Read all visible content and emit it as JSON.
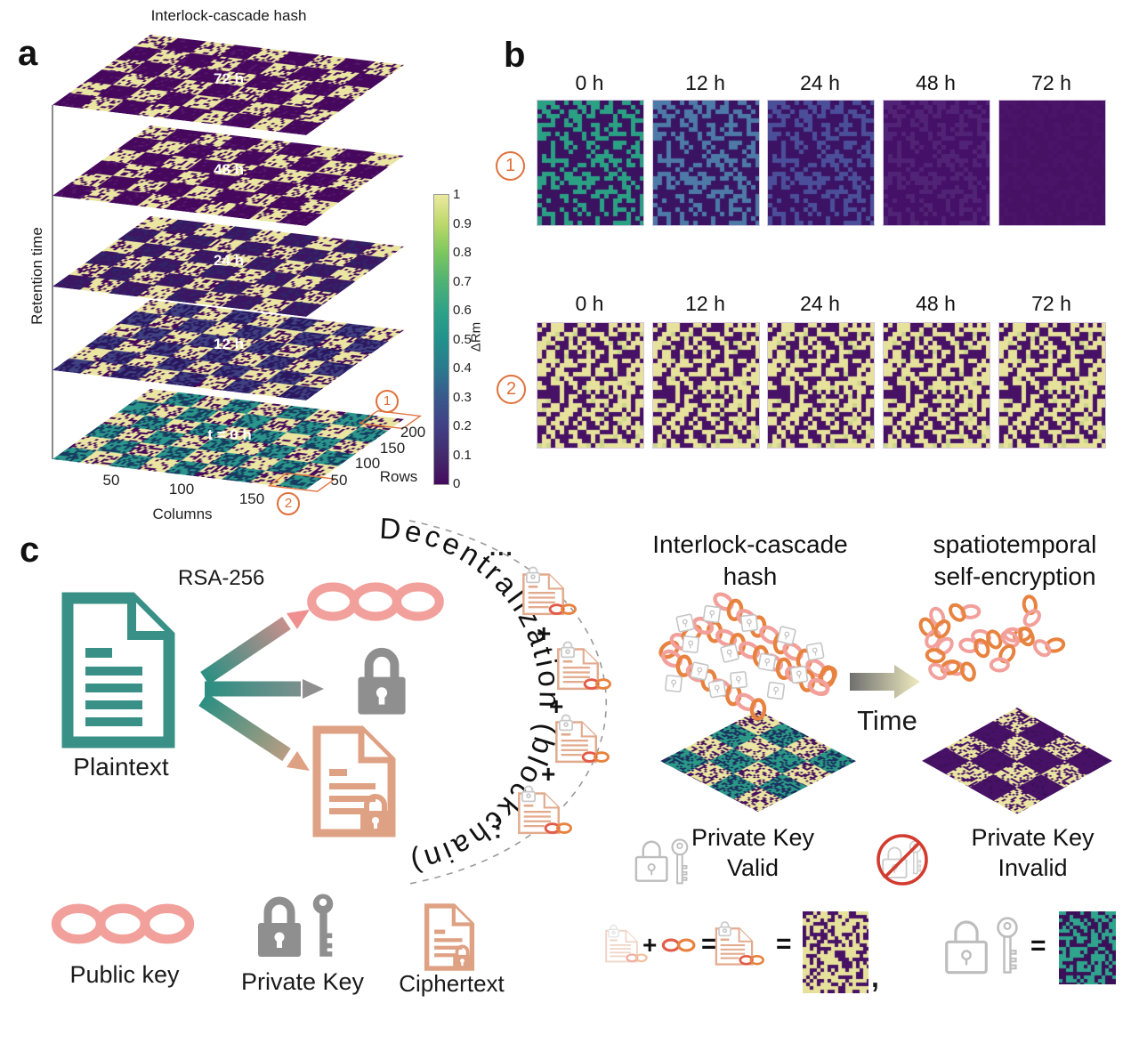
{
  "colors": {
    "accent_orange": "#e0703a",
    "pale_yellow": "#eae6a2",
    "pale_yellow2": "#e7e29b",
    "viridis_dark": "#460f5f",
    "plane_dark": "#46085c",
    "plane_dark2": "#55176f",
    "plane_p24": "#3c1662",
    "plane_p24s": "#2e2668",
    "plane_p12": "#3f4180",
    "plane_p12s": "#2a1760",
    "plane_teal": "#2a958b",
    "plane_teals": "#173c60",
    "b1_0h": "#2ba184",
    "b1_12h": "#4d7aa6",
    "b1_24h": "#4b4f99",
    "b1_48h": "#512377",
    "b1_72h": "#4a1468",
    "tile_bg1": "#3a1260",
    "tile_bg2": "#3a1463",
    "tile_bg3": "#3c1264",
    "tile_bg4": "#451067",
    "tile_bg5": "#471164",
    "row2_purple": "#471166",
    "row2_green": "#ccd68d",
    "eq_teal": "#2fa58d",
    "eq_purple": "#3a1158",
    "teal2": "#2a9a87",
    "dark_navy": "#1c2f5e",
    "doc_teal": "#399086",
    "doc_orange": "#dfa183",
    "chain_pink": "#f2a09b",
    "chain_orange": "#e8823f",
    "chain_red": "#e25b48",
    "lock_gray": "#8f8f8f",
    "lock_light": "#c5c5c5",
    "no_red": "#d23b2e"
  },
  "panel_a": {
    "label": "a",
    "title": "Interlock-cascade hash",
    "y_axis": "Retention time",
    "planes": [
      "72 h",
      "48 h",
      "24 h",
      "12 h",
      "t = 0 h"
    ],
    "columns_axis": {
      "label": "Columns",
      "ticks": [
        "50",
        "100",
        "150"
      ]
    },
    "rows_axis": {
      "label": "Rows",
      "ticks": [
        "50",
        "100",
        "150",
        "200"
      ]
    },
    "colorbar": {
      "label": "ΔRm",
      "ticks": [
        "1",
        "0.9",
        "0.8",
        "0.7",
        "0.6",
        "0.5",
        "0.4",
        "0.3",
        "0.2",
        "0.1",
        "0"
      ]
    },
    "marker1": "1",
    "marker2": "2"
  },
  "panel_b": {
    "label": "b",
    "marker1": "1",
    "marker2": "2",
    "row1_times": [
      "0 h",
      "12 h",
      "24 h",
      "48 h",
      "72 h"
    ],
    "row2_times": [
      "0 h",
      "12 h",
      "24 h",
      "48 h",
      "72 h"
    ]
  },
  "panel_c": {
    "label": "c",
    "rsa": "RSA-256",
    "plaintext": "Plaintext",
    "arc_text": "Decentralization (blockchain)",
    "ellipsis_top": "...",
    "ellipsis_bottom": "...",
    "plus1": "+",
    "plus2": "+",
    "plus3": "+",
    "hash_title_1": "Interlock-cascade",
    "hash_title_2": "hash",
    "st_title_1": "spatiotemporal",
    "st_title_2": "self-encryption",
    "time": "Time",
    "valid_1": "Private Key",
    "valid_2": "Valid",
    "invalid_1": "Private Key",
    "invalid_2": "Invalid"
  },
  "legend": {
    "public_key": "Public key",
    "private_key": "Private Key",
    "ciphertext": "Ciphertext",
    "plus": "+",
    "equals1": "=",
    "equals2": "=",
    "equals3": "=",
    "comma": ","
  }
}
